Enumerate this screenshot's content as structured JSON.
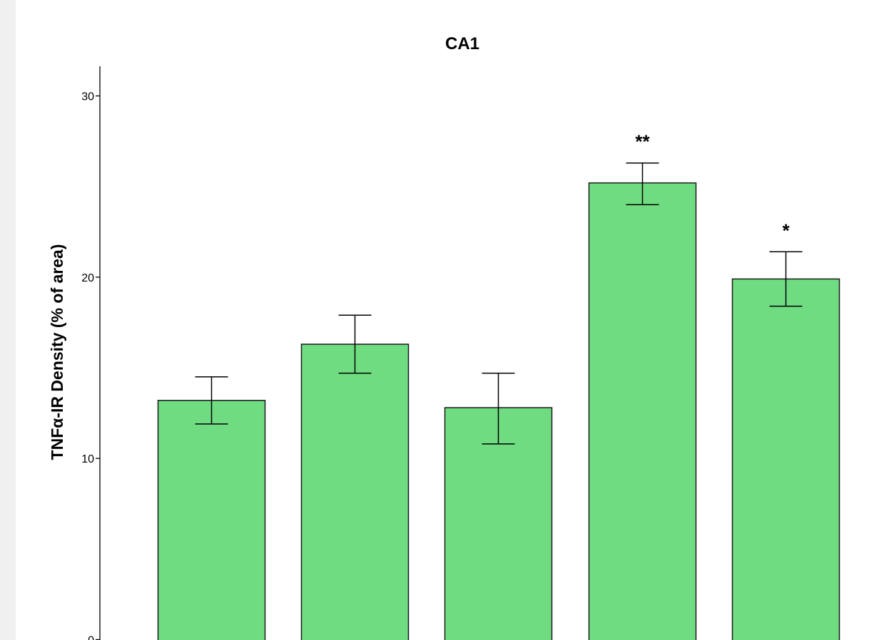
{
  "colors": {
    "bar_fill": "#70dc82",
    "bar_stroke": "#1a1a1a",
    "axis": "#000000",
    "background": "#ffffff",
    "outer_background": "#f0f0f0"
  },
  "chart_data": {
    "type": "bar",
    "title": "CA1",
    "xlabel": "",
    "ylabel": "TNFα-IR Density (% of area)",
    "ylim": [
      0,
      31.5
    ],
    "yticks": [
      0,
      10,
      20,
      30
    ],
    "ytick_labels": [
      "0",
      "10",
      "20",
      "30"
    ],
    "values": [
      13.2,
      16.3,
      12.8,
      25.2,
      19.9
    ],
    "error_low": [
      11.9,
      14.7,
      10.8,
      24.0,
      18.4
    ],
    "error_high": [
      14.5,
      17.9,
      14.7,
      26.3,
      21.4
    ],
    "significance": [
      "",
      "",
      "",
      "**",
      "*"
    ],
    "grid": false,
    "legend": "none"
  }
}
